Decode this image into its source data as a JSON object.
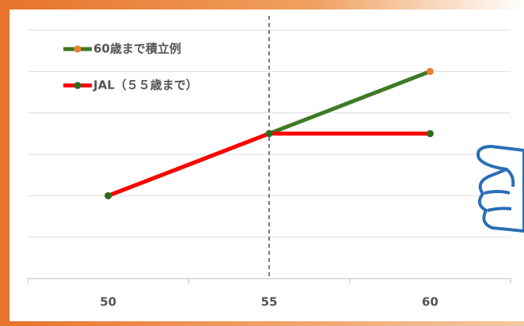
{
  "chart_data": {
    "type": "line",
    "categories": [
      "50",
      "55",
      "60"
    ],
    "series": [
      {
        "name": "60歳まで積立例",
        "color": "#3d7a25",
        "marker_color": "#ed7d31",
        "values": [
          2,
          3.5,
          5
        ]
      },
      {
        "name": "JAL（５５歳まで）",
        "color": "#ff0000",
        "marker_color": "#2e6b1f",
        "values": [
          2,
          3.5,
          3.5
        ]
      }
    ],
    "ylim": [
      0,
      6
    ],
    "yticks": [
      0,
      1,
      2,
      3,
      4,
      5,
      6
    ],
    "grid": true
  }
}
